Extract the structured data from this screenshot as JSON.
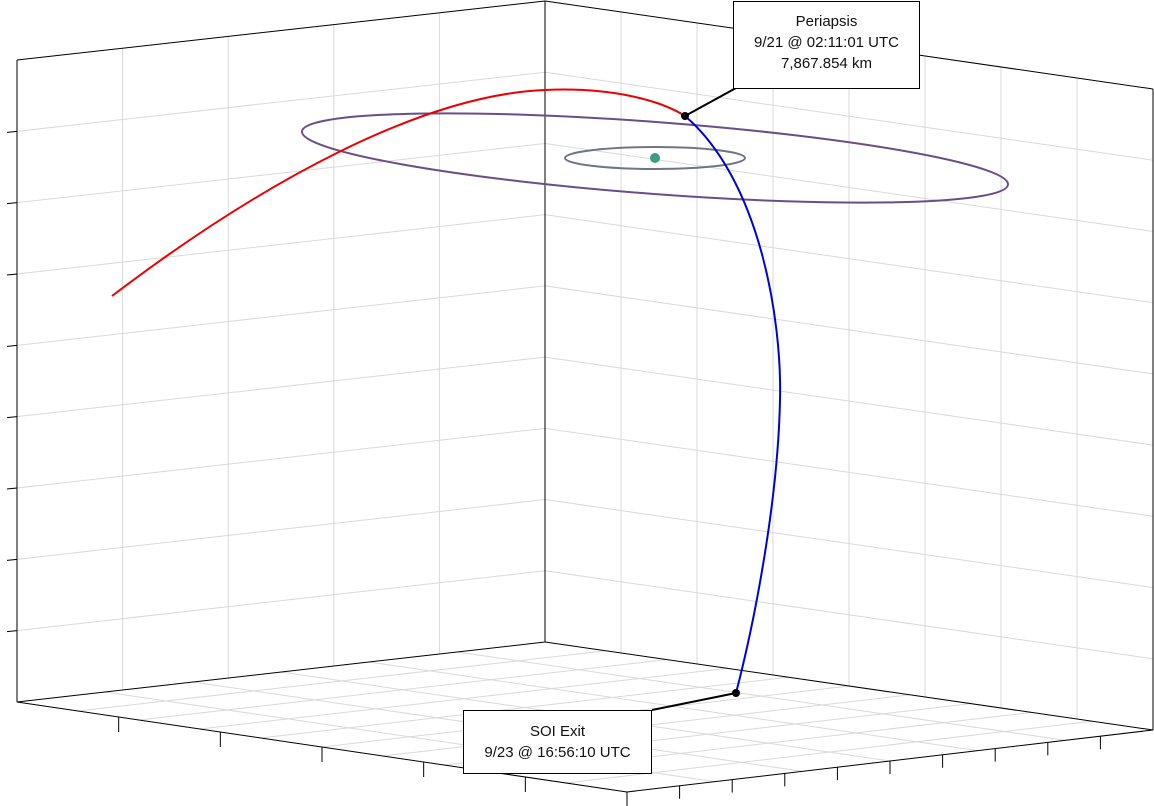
{
  "colors": {
    "incoming_trajectory": "#ee0000",
    "outgoing_trajectory": "#0000dd",
    "outer_orbit": "#6a4f86",
    "inner_orbit": "#707488",
    "central_body": "#3f9a86",
    "grid": "#d9d9d9",
    "axis": "#000000"
  },
  "annotations": {
    "periapsis": {
      "title": "Periapsis",
      "time": "9/21 @ 02:11:01 UTC",
      "altitude": "7,867.854 km"
    },
    "soi_exit": {
      "title": "SOI Exit",
      "time": "9/23 @ 16:56:10 UTC"
    }
  }
}
